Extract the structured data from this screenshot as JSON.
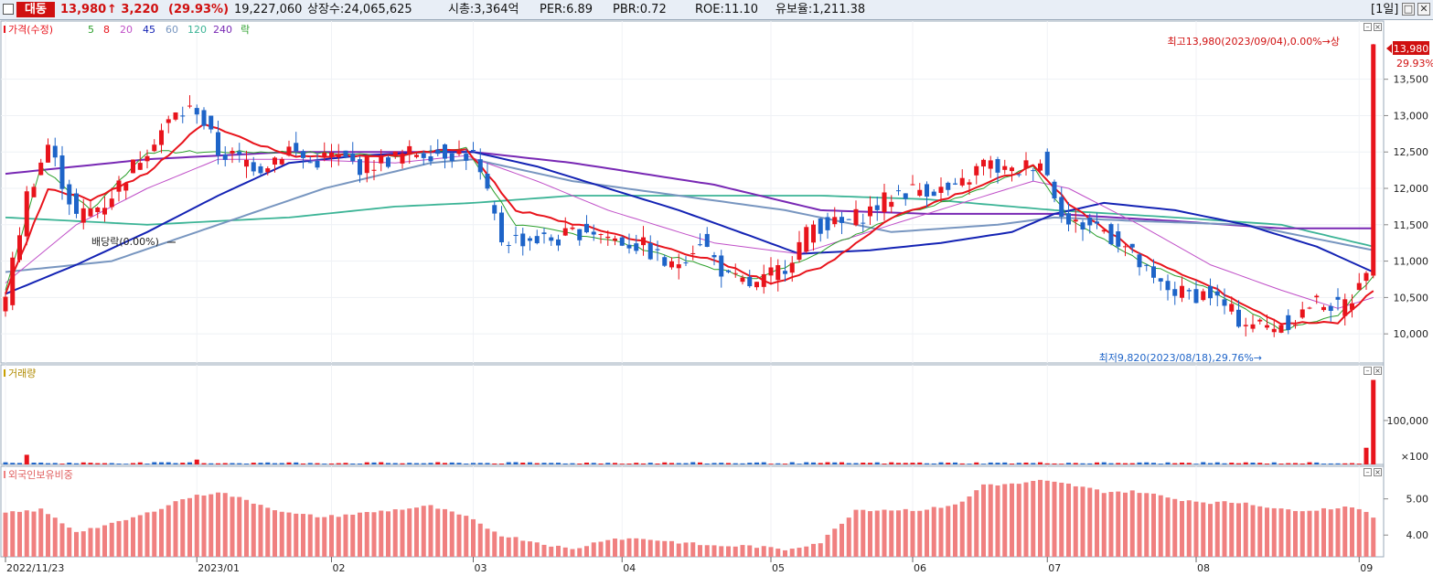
{
  "header": {
    "stock_name": "대동",
    "price": "13,980",
    "change": "↑ 3,220",
    "change_pct": "(29.93%)",
    "volume": "19,227,060",
    "listed_shares": "상장수:24,065,625",
    "market_cap": "시총:3,364억",
    "per": "PER:6.89",
    "pbr": "PBR:0.72",
    "roe": "ROE:11.10",
    "reserve_ratio": "유보율:1,211.38",
    "period": "[1일]"
  },
  "colors": {
    "up": "#e8141c",
    "down": "#1e64c8",
    "ma5": "#2ca02c",
    "ma8": "#e8141c",
    "ma20": "#c050c8",
    "ma45": "#1423b4",
    "ma60": "#7896c0",
    "ma120": "#3cb496",
    "ma240": "#7828b4",
    "foreign": "#f08080"
  },
  "chart_data": [
    {
      "type": "candlestick",
      "title": "가격(수정)",
      "legend": [
        {
          "label": "가격(수정)",
          "color": "#e8141c"
        },
        {
          "label": "5",
          "color": "#2ca02c"
        },
        {
          "label": "8",
          "color": "#e8141c"
        },
        {
          "label": "20",
          "color": "#c050c8"
        },
        {
          "label": "45",
          "color": "#1423b4"
        },
        {
          "label": "60",
          "color": "#7896c0"
        },
        {
          "label": "120",
          "color": "#3cb496"
        },
        {
          "label": "240",
          "color": "#7828b4"
        },
        {
          "label": "락",
          "color": "#2ca02c"
        }
      ],
      "y_ticks": [
        "10,000",
        "10,500",
        "11,000",
        "11,500",
        "12,000",
        "12,500",
        "13,000",
        "13,500"
      ],
      "ylim": [
        9600,
        14300
      ],
      "x_tick_labels": [
        "2022/11/23",
        "2023/01",
        "02",
        "03",
        "04",
        "05",
        "06",
        "07",
        "08",
        "09"
      ],
      "x_tick_index": [
        0,
        27,
        46,
        66,
        87,
        108,
        128,
        147,
        168,
        191
      ],
      "num_candles": 194,
      "anchors": {
        "index": [
          0,
          3,
          6,
          10,
          14,
          18,
          21,
          24,
          27,
          30,
          33,
          36,
          40,
          43,
          46,
          50,
          54,
          58,
          62,
          66,
          70,
          74,
          78,
          82,
          86,
          90,
          94,
          98,
          102,
          106,
          110,
          114,
          118,
          122,
          126,
          130,
          134,
          138,
          142,
          146,
          150,
          154,
          158,
          162,
          166,
          170,
          174,
          178,
          182,
          184,
          186,
          188,
          190,
          191,
          192,
          193
        ],
        "close": [
          10480,
          11900,
          12600,
          11600,
          11800,
          12300,
          12700,
          13000,
          13100,
          12500,
          12400,
          12300,
          12550,
          12350,
          12450,
          12300,
          12400,
          12500,
          12500,
          12450,
          11300,
          11300,
          11300,
          11450,
          11300,
          11200,
          10900,
          11300,
          10750,
          10650,
          10950,
          11500,
          11500,
          11700,
          11950,
          12000,
          11950,
          12350,
          12200,
          12400,
          11500,
          11500,
          11200,
          10700,
          10550,
          10550,
          10200,
          10100,
          10200,
          10400,
          10450,
          10350,
          10500,
          10800,
          10750,
          13980
        ]
      },
      "moving_average_anchors": {
        "ma5": {
          "index": [
            0,
            5,
            12,
            20,
            28,
            40,
            55,
            65,
            72,
            85,
            100,
            106,
            112,
            125,
            135,
            145,
            150,
            160,
            170,
            180,
            188,
            193
          ],
          "value": [
            10600,
            12300,
            11700,
            12500,
            12500,
            12500,
            12450,
            12550,
            11500,
            11300,
            10900,
            10750,
            11000,
            11600,
            11900,
            12300,
            11600,
            11000,
            10600,
            10050,
            10250,
            10800
          ]
        },
        "ma8": {
          "index": [
            0,
            6,
            12,
            20,
            28,
            40,
            55,
            65,
            72,
            85,
            100,
            108,
            115,
            125,
            135,
            145,
            150,
            160,
            170,
            180,
            188,
            193
          ],
          "value": [
            10550,
            12000,
            11850,
            12200,
            12900,
            12450,
            12450,
            12550,
            11700,
            11400,
            11000,
            10700,
            10900,
            11600,
            11950,
            12300,
            11800,
            11100,
            10650,
            10150,
            10150,
            10600
          ]
        },
        "ma20": {
          "index": [
            0,
            10,
            20,
            30,
            40,
            55,
            65,
            75,
            85,
            100,
            112,
            125,
            135,
            145,
            150,
            160,
            170,
            180,
            188,
            193
          ],
          "value": [
            10700,
            11500,
            12000,
            12400,
            12400,
            12350,
            12450,
            12100,
            11700,
            11250,
            11100,
            11500,
            11800,
            12100,
            12000,
            11500,
            10950,
            10600,
            10350,
            10500
          ]
        },
        "ma45": {
          "index": [
            0,
            10,
            20,
            30,
            40,
            50,
            60,
            66,
            75,
            85,
            95,
            105,
            112,
            122,
            132,
            142,
            148,
            155,
            165,
            175,
            185,
            193
          ],
          "value": [
            10550,
            10950,
            11400,
            11900,
            12350,
            12450,
            12500,
            12500,
            12300,
            12000,
            11700,
            11350,
            11100,
            11150,
            11250,
            11400,
            11650,
            11800,
            11700,
            11500,
            11200,
            10850
          ]
        },
        "ma60": {
          "index": [
            0,
            15,
            30,
            45,
            60,
            66,
            80,
            95,
            110,
            125,
            140,
            148,
            160,
            175,
            193
          ],
          "value": [
            10850,
            11000,
            11500,
            12000,
            12350,
            12400,
            12100,
            11900,
            11700,
            11400,
            11500,
            11600,
            11550,
            11500,
            11150
          ]
        },
        "ma120": {
          "index": [
            0,
            20,
            40,
            55,
            66,
            80,
            100,
            115,
            130,
            148,
            165,
            180,
            193
          ],
          "value": [
            11600,
            11500,
            11600,
            11750,
            11800,
            11900,
            11900,
            11900,
            11850,
            11700,
            11600,
            11500,
            11200
          ]
        },
        "ma240": {
          "index": [
            0,
            20,
            40,
            55,
            66,
            80,
            100,
            115,
            130,
            148,
            165,
            180,
            193
          ],
          "value": [
            12200,
            12400,
            12500,
            12500,
            12500,
            12350,
            12050,
            11700,
            11650,
            11650,
            11550,
            11450,
            11450
          ]
        }
      },
      "annotations": {
        "high": "최고13,980(2023/09/04),0.00%→상",
        "low": "최저9,820(2023/08/18),29.76%→",
        "dividend": "배당락(0.00%)",
        "last_price": "13,980",
        "last_pct": "29.93%"
      }
    },
    {
      "type": "bar",
      "title": "거래량",
      "y_ticks": [
        "100,000"
      ],
      "unit": "×100",
      "ylim": [
        0,
        210000
      ],
      "spikes": {
        "index": [
          3,
          27,
          192,
          193
        ],
        "value": [
          22000,
          11000,
          38000,
          192270
        ]
      },
      "base_level": 4000
    },
    {
      "type": "bar",
      "title": "외국인보유비중",
      "y_ticks": [
        "4.00",
        "5.00"
      ],
      "ylim": [
        3.4,
        5.9
      ],
      "anchors": {
        "index": [
          0,
          5,
          10,
          15,
          20,
          25,
          30,
          35,
          40,
          45,
          50,
          55,
          60,
          65,
          70,
          75,
          80,
          85,
          90,
          95,
          100,
          105,
          110,
          115,
          120,
          125,
          130,
          135,
          138,
          142,
          146,
          150,
          155,
          160,
          165,
          170,
          175,
          180,
          185,
          190,
          193
        ],
        "value": [
          4.6,
          4.7,
          4.1,
          4.3,
          4.6,
          5.0,
          5.2,
          4.9,
          4.6,
          4.5,
          4.6,
          4.7,
          4.8,
          4.5,
          4.0,
          3.8,
          3.6,
          3.9,
          3.9,
          3.8,
          3.7,
          3.7,
          3.6,
          3.8,
          4.7,
          4.7,
          4.7,
          4.9,
          5.4,
          5.4,
          5.5,
          5.4,
          5.2,
          5.2,
          5.0,
          4.9,
          4.9,
          4.7,
          4.7,
          4.8,
          4.5
        ]
      }
    }
  ]
}
